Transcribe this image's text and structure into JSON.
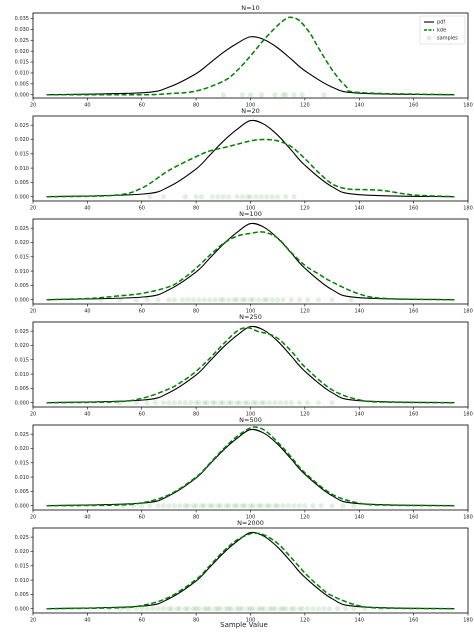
{
  "figure": {
    "xlabel": "Sample Value",
    "legend": [
      "pdf",
      "kde",
      "samples"
    ]
  },
  "colors": {
    "pdf": "#000000",
    "kde": "#008000",
    "samples": "#008000",
    "axes": "#000000"
  },
  "chart_data": [
    {
      "type": "line",
      "title": "N=10",
      "xlim": [
        20,
        180
      ],
      "ylim": [
        -0.0015,
        0.0375
      ],
      "x_ticks": [
        20,
        40,
        60,
        80,
        100,
        120,
        140,
        160,
        180
      ],
      "y_ticks": [
        0.0,
        0.005,
        0.01,
        0.015,
        0.02,
        0.025,
        0.03,
        0.035
      ],
      "y_tick_labels": [
        "0.000",
        "0.005",
        "0.010",
        "0.015",
        "0.020",
        "0.025",
        "0.030",
        "0.035"
      ],
      "legend_position": "top-right",
      "series": [
        {
          "name": "pdf",
          "style": "solid",
          "x": [
            25,
            60,
            70,
            80,
            85,
            90,
            95,
            100,
            105,
            110,
            115,
            120,
            130,
            140,
            175
          ],
          "y": [
            0.0,
            0.0009,
            0.0035,
            0.0097,
            0.0145,
            0.0194,
            0.0235,
            0.0266,
            0.0253,
            0.0215,
            0.0163,
            0.011,
            0.0035,
            0.0007,
            0.0
          ]
        },
        {
          "name": "kde",
          "style": "dashed",
          "x": [
            25,
            60,
            70,
            80,
            90,
            95,
            100,
            105,
            110,
            113,
            115,
            118,
            122,
            125,
            130,
            135,
            140,
            175
          ],
          "y": [
            0.0,
            0.0,
            0.0005,
            0.0017,
            0.0062,
            0.011,
            0.0178,
            0.0253,
            0.0318,
            0.0348,
            0.0355,
            0.034,
            0.028,
            0.0215,
            0.0115,
            0.004,
            0.001,
            0.0
          ]
        },
        {
          "name": "samples",
          "style": "markers",
          "x": [
            90,
            97,
            100,
            104,
            109,
            112,
            113,
            116,
            119,
            127
          ]
        }
      ]
    },
    {
      "type": "line",
      "title": "N=20",
      "xlim": [
        20,
        180
      ],
      "ylim": [
        -0.0015,
        0.0282
      ],
      "x_ticks": [
        20,
        40,
        60,
        80,
        100,
        120,
        140,
        160,
        180
      ],
      "y_ticks": [
        0.0,
        0.005,
        0.01,
        0.015,
        0.02,
        0.025
      ],
      "y_tick_labels": [
        "0.000",
        "0.005",
        "0.010",
        "0.015",
        "0.020",
        "0.025"
      ],
      "series": [
        {
          "name": "pdf",
          "style": "solid",
          "x": [
            25,
            60,
            70,
            80,
            85,
            90,
            95,
            100,
            105,
            110,
            115,
            120,
            130,
            140,
            175
          ],
          "y": [
            0.0,
            0.0009,
            0.0035,
            0.0097,
            0.0145,
            0.0194,
            0.0235,
            0.0266,
            0.0253,
            0.0215,
            0.0163,
            0.011,
            0.0035,
            0.0007,
            0.0
          ]
        },
        {
          "name": "kde",
          "style": "dashed",
          "x": [
            25,
            50,
            60,
            70,
            80,
            85,
            90,
            95,
            100,
            105,
            110,
            115,
            120,
            125,
            130,
            135,
            140,
            145,
            150,
            160,
            175
          ],
          "y": [
            0.0,
            0.0005,
            0.003,
            0.0092,
            0.014,
            0.016,
            0.0171,
            0.0183,
            0.0195,
            0.02,
            0.0195,
            0.0175,
            0.0133,
            0.0085,
            0.0045,
            0.0028,
            0.0025,
            0.0024,
            0.002,
            0.0006,
            0.0
          ]
        },
        {
          "name": "samples",
          "style": "markers",
          "x": [
            63,
            68,
            76,
            80,
            82,
            86,
            88,
            90,
            92,
            95,
            97,
            99,
            100,
            102,
            104,
            106,
            108,
            110,
            113,
            116
          ]
        }
      ]
    },
    {
      "type": "line",
      "title": "N=100",
      "xlim": [
        20,
        180
      ],
      "ylim": [
        -0.0015,
        0.0282
      ],
      "x_ticks": [
        20,
        40,
        60,
        80,
        100,
        120,
        140,
        160,
        180
      ],
      "y_ticks": [
        0.0,
        0.005,
        0.01,
        0.015,
        0.02,
        0.025
      ],
      "y_tick_labels": [
        "0.000",
        "0.005",
        "0.010",
        "0.015",
        "0.020",
        "0.025"
      ],
      "series": [
        {
          "name": "pdf",
          "style": "solid",
          "x": [
            25,
            60,
            70,
            80,
            85,
            90,
            95,
            100,
            105,
            110,
            115,
            120,
            130,
            140,
            175
          ],
          "y": [
            0.0,
            0.0009,
            0.0035,
            0.0097,
            0.0145,
            0.0194,
            0.0235,
            0.0266,
            0.0253,
            0.0215,
            0.0163,
            0.011,
            0.0035,
            0.0007,
            0.0
          ]
        },
        {
          "name": "kde",
          "style": "dashed",
          "x": [
            25,
            40,
            50,
            60,
            70,
            75,
            80,
            85,
            90,
            95,
            100,
            105,
            110,
            115,
            120,
            125,
            130,
            140,
            150,
            175
          ],
          "y": [
            0.0,
            0.0004,
            0.0012,
            0.0022,
            0.0045,
            0.0072,
            0.011,
            0.0155,
            0.0196,
            0.0222,
            0.0232,
            0.0236,
            0.0215,
            0.0165,
            0.012,
            0.009,
            0.0062,
            0.002,
            0.0004,
            0.0
          ]
        },
        {
          "name": "samples",
          "style": "markers",
          "x": [
            45,
            52,
            58,
            62,
            66,
            70,
            72,
            75,
            77,
            79,
            81,
            83,
            85,
            87,
            89,
            90,
            92,
            94,
            95,
            97,
            98,
            100,
            101,
            103,
            105,
            106,
            108,
            110,
            112,
            115,
            118,
            121,
            125,
            130,
            137
          ]
        }
      ]
    },
    {
      "type": "line",
      "title": "N=250",
      "xlim": [
        20,
        180
      ],
      "ylim": [
        -0.0015,
        0.0282
      ],
      "x_ticks": [
        20,
        40,
        60,
        80,
        100,
        120,
        140,
        160,
        180
      ],
      "y_ticks": [
        0.0,
        0.005,
        0.01,
        0.015,
        0.02,
        0.025
      ],
      "y_tick_labels": [
        "0.000",
        "0.005",
        "0.010",
        "0.015",
        "0.020",
        "0.025"
      ],
      "series": [
        {
          "name": "pdf",
          "style": "solid",
          "x": [
            25,
            60,
            70,
            80,
            85,
            90,
            95,
            100,
            105,
            110,
            115,
            120,
            130,
            140,
            175
          ],
          "y": [
            0.0,
            0.0009,
            0.0035,
            0.0097,
            0.0145,
            0.0194,
            0.0235,
            0.0266,
            0.0253,
            0.0215,
            0.0163,
            0.011,
            0.0035,
            0.0007,
            0.0
          ]
        },
        {
          "name": "kde",
          "style": "dashed",
          "x": [
            25,
            50,
            60,
            70,
            75,
            80,
            85,
            90,
            95,
            98,
            100,
            103,
            106,
            110,
            115,
            120,
            130,
            140,
            150,
            175
          ],
          "y": [
            0.0,
            0.0003,
            0.0015,
            0.0048,
            0.0075,
            0.011,
            0.0155,
            0.0205,
            0.025,
            0.0262,
            0.026,
            0.0248,
            0.0242,
            0.0225,
            0.018,
            0.0125,
            0.0045,
            0.001,
            0.0002,
            0.0
          ]
        },
        {
          "name": "samples",
          "style": "markers",
          "x": [
            52,
            58,
            62,
            65,
            68,
            70,
            72,
            74,
            76,
            78,
            80,
            81,
            83,
            84,
            86,
            87,
            89,
            90,
            92,
            93,
            95,
            96,
            98,
            99,
            101,
            102,
            104,
            105,
            107,
            109,
            111,
            113,
            115,
            118,
            121,
            125,
            130
          ]
        }
      ]
    },
    {
      "type": "line",
      "title": "N=500",
      "xlim": [
        20,
        180
      ],
      "ylim": [
        -0.0015,
        0.0282
      ],
      "x_ticks": [
        20,
        40,
        60,
        80,
        100,
        120,
        140,
        160,
        180
      ],
      "y_ticks": [
        0.0,
        0.005,
        0.01,
        0.015,
        0.02,
        0.025
      ],
      "y_tick_labels": [
        "0.000",
        "0.005",
        "0.010",
        "0.015",
        "0.020",
        "0.025"
      ],
      "series": [
        {
          "name": "pdf",
          "style": "solid",
          "x": [
            25,
            60,
            70,
            80,
            85,
            90,
            95,
            100,
            105,
            110,
            115,
            120,
            130,
            140,
            175
          ],
          "y": [
            0.0,
            0.0009,
            0.0035,
            0.0097,
            0.0145,
            0.0194,
            0.0235,
            0.0266,
            0.0253,
            0.0215,
            0.0163,
            0.011,
            0.0035,
            0.0007,
            0.0
          ]
        },
        {
          "name": "kde",
          "style": "dashed",
          "x": [
            25,
            50,
            60,
            70,
            80,
            85,
            90,
            95,
            100,
            103,
            106,
            110,
            115,
            120,
            130,
            140,
            150,
            175
          ],
          "y": [
            0.0,
            0.0002,
            0.001,
            0.0038,
            0.01,
            0.0148,
            0.0198,
            0.0242,
            0.0272,
            0.0273,
            0.0258,
            0.0222,
            0.017,
            0.0115,
            0.004,
            0.0009,
            0.0002,
            0.0
          ]
        },
        {
          "name": "samples",
          "style": "markers",
          "x": [
            53,
            57,
            60,
            63,
            66,
            68,
            70,
            72,
            74,
            76,
            77,
            79,
            80,
            82,
            83,
            85,
            86,
            88,
            89,
            91,
            92,
            94,
            95,
            97,
            98,
            100,
            101,
            103,
            104,
            106,
            107,
            109,
            110,
            112,
            114,
            116,
            118,
            120,
            123,
            126,
            130,
            134,
            138
          ]
        }
      ]
    },
    {
      "type": "line",
      "title": "N=2000",
      "xlim": [
        20,
        180
      ],
      "ylim": [
        -0.0015,
        0.0282
      ],
      "x_ticks": [
        20,
        40,
        60,
        80,
        100,
        120,
        140,
        160,
        180
      ],
      "y_ticks": [
        0.0,
        0.005,
        0.01,
        0.015,
        0.02,
        0.025
      ],
      "y_tick_labels": [
        "0.000",
        "0.005",
        "0.010",
        "0.015",
        "0.020",
        "0.025"
      ],
      "series": [
        {
          "name": "pdf",
          "style": "solid",
          "x": [
            25,
            60,
            70,
            80,
            85,
            90,
            95,
            100,
            105,
            110,
            115,
            120,
            130,
            140,
            175
          ],
          "y": [
            0.0,
            0.0009,
            0.0035,
            0.0097,
            0.0145,
            0.0194,
            0.0235,
            0.0266,
            0.0253,
            0.0215,
            0.0163,
            0.011,
            0.0035,
            0.0007,
            0.0
          ]
        },
        {
          "name": "kde",
          "style": "dashed",
          "x": [
            25,
            50,
            60,
            70,
            80,
            85,
            90,
            95,
            100,
            102,
            105,
            110,
            115,
            120,
            125,
            130,
            140,
            150,
            175
          ],
          "y": [
            0.0,
            0.0003,
            0.0011,
            0.004,
            0.0102,
            0.015,
            0.02,
            0.024,
            0.0262,
            0.0264,
            0.0258,
            0.0228,
            0.0178,
            0.0125,
            0.008,
            0.0045,
            0.001,
            0.0002,
            0.0
          ]
        },
        {
          "name": "samples",
          "style": "markers",
          "x": [
            48,
            52,
            55,
            58,
            60,
            62,
            64,
            66,
            68,
            70,
            71,
            73,
            74,
            76,
            77,
            79,
            80,
            81,
            83,
            84,
            85,
            87,
            88,
            89,
            91,
            92,
            93,
            95,
            96,
            97,
            99,
            100,
            101,
            103,
            104,
            105,
            107,
            108,
            109,
            111,
            112,
            113,
            115,
            116,
            118,
            119,
            121,
            123,
            125,
            127,
            129,
            132,
            135,
            138,
            142,
            148
          ]
        }
      ]
    }
  ]
}
